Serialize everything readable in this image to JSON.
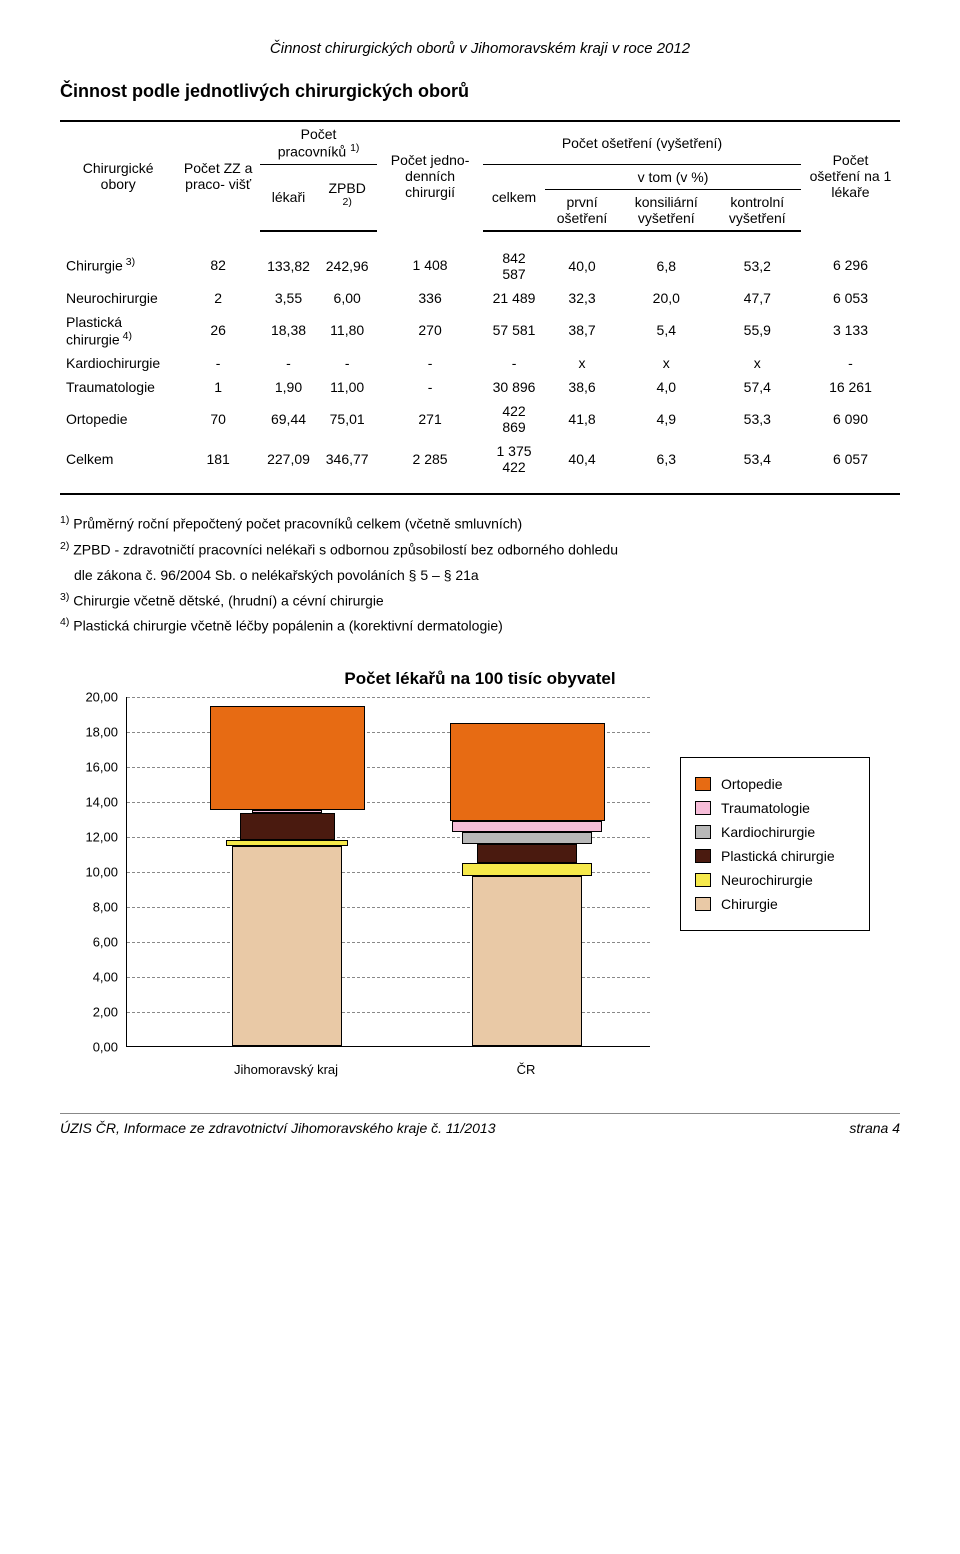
{
  "doc_header": "Činnost chirurgických oborů v Jihomoravském kraji v roce 2012",
  "section_title": "Činnost podle jednotlivých chirurgických oborů",
  "table": {
    "head": {
      "col1": "Chirurgické obory",
      "col2": "Počet ZZ a praco- višť",
      "grp1": "Počet pracovníků",
      "grp1_sup": "1)",
      "grp1_a": "lékaři",
      "grp1_b": "ZPBD",
      "grp1_b_sup": "2)",
      "col5": "Počet jedno- denních chirurgií",
      "grp2": "Počet ošetření (vyšetření)",
      "grp2_a": "celkem",
      "grp2_b": "v tom (v %)",
      "grp2_b1": "první ošetření",
      "grp2_b2": "konsiliární vyšetření",
      "grp2_b3": "kontrolní vyšetření",
      "col10": "Počet ošetření na 1 lékaře"
    },
    "rows": [
      {
        "name": "Chirurgie",
        "sup": "3)",
        "c1": "82",
        "c2": "133,82",
        "c3": "242,96",
        "c4": "1 408",
        "c5": "842 587",
        "c6": "40,0",
        "c7": "6,8",
        "c8": "53,2",
        "c9": "6 296"
      },
      {
        "name": "Neurochirurgie",
        "sup": "",
        "c1": "2",
        "c2": "3,55",
        "c3": "6,00",
        "c4": "336",
        "c5": "21 489",
        "c6": "32,3",
        "c7": "20,0",
        "c8": "47,7",
        "c9": "6 053"
      },
      {
        "name": "Plastická chirurgie",
        "sup": "4)",
        "c1": "26",
        "c2": "18,38",
        "c3": "11,80",
        "c4": "270",
        "c5": "57 581",
        "c6": "38,7",
        "c7": "5,4",
        "c8": "55,9",
        "c9": "3 133"
      },
      {
        "name": "Kardiochirurgie",
        "sup": "",
        "c1": "-",
        "c2": "-",
        "c3": "-",
        "c4": "-",
        "c5": "-",
        "c6": "x",
        "c7": "x",
        "c8": "x",
        "c9": "-"
      },
      {
        "name": "Traumatologie",
        "sup": "",
        "c1": "1",
        "c2": "1,90",
        "c3": "11,00",
        "c4": "-",
        "c5": "30 896",
        "c6": "38,6",
        "c7": "4,0",
        "c8": "57,4",
        "c9": "16 261"
      },
      {
        "name": "Ortopedie",
        "sup": "",
        "c1": "70",
        "c2": "69,44",
        "c3": "75,01",
        "c4": "271",
        "c5": "422 869",
        "c6": "41,8",
        "c7": "4,9",
        "c8": "53,3",
        "c9": "6 090"
      },
      {
        "name": "Celkem",
        "sup": "",
        "c1": "181",
        "c2": "227,09",
        "c3": "346,77",
        "c4": "2 285",
        "c5": "1 375 422",
        "c6": "40,4",
        "c7": "6,3",
        "c8": "53,4",
        "c9": "6 057"
      }
    ]
  },
  "footnotes": {
    "f1_sup": "1)",
    "f1": "Průměrný roční přepočtený počet pracovníků celkem (včetně smluvních)",
    "f2_sup": "2)",
    "f2a": "ZPBD - zdravotničtí pracovníci nelékaři s odbornou způsobilostí bez odborného dohledu",
    "f2b": "dle zákona č. 96/2004 Sb. o nelékařských povoláních § 5 – § 21a",
    "f3_sup": "3)",
    "f3": "Chirurgie včetně dětské, (hrudní) a cévní  chirurgie",
    "f4_sup": "4)",
    "f4": "Plastická chirurgie včetně léčby popálenin a (korektivní dermatologie)"
  },
  "chart": {
    "title": "Počet lékařů na 100 tisíc obyvatel",
    "type": "stacked-bar",
    "ylim": [
      0,
      20
    ],
    "ytick_step": 2,
    "ylabels": [
      "0,00",
      "2,00",
      "4,00",
      "6,00",
      "8,00",
      "10,00",
      "12,00",
      "14,00",
      "16,00",
      "18,00",
      "20,00"
    ],
    "grid_color": "#888888",
    "background": "#ffffff",
    "categories": [
      "Jihomoravský kraj",
      "ČR"
    ],
    "series_order": [
      "Chirurgie",
      "Neurochirurgie",
      "Plastická chirurgie",
      "Kardiochirurgie",
      "Traumatologie",
      "Ortopedie"
    ],
    "series_colors": {
      "Chirurgie": "#e9c9a6",
      "Neurochirurgie": "#f6e94b",
      "Plastická chirurgie": "#4a1a0f",
      "Kardiochirurgie": "#b8b8b8",
      "Traumatologie": "#f6bcd8",
      "Ortopedie": "#e76b13"
    },
    "data": {
      "Jihomoravský kraj": {
        "Chirurgie": 11.45,
        "Neurochirurgie": 0.3,
        "Plastická chirurgie": 1.57,
        "Kardiochirurgie": 0.0,
        "Traumatologie": 0.16,
        "Ortopedie": 5.94
      },
      "ČR": {
        "Chirurgie": 9.7,
        "Neurochirurgie": 0.75,
        "Plastická chirurgie": 1.1,
        "Kardiochirurgie": 0.7,
        "Traumatologie": 0.6,
        "Ortopedie": 5.6
      }
    },
    "bar_widths": {
      "Jihomoravský kraj": {
        "Chirurgie": 110,
        "Neurochirurgie": 122,
        "Plastická chirurgie": 95,
        "Kardiochirurgie": 80,
        "Traumatologie": 70,
        "Ortopedie": 155
      },
      "ČR": {
        "Chirurgie": 110,
        "Neurochirurgie": 130,
        "Plastická chirurgie": 100,
        "Kardiochirurgie": 130,
        "Traumatologie": 150,
        "Ortopedie": 155
      }
    },
    "group_centers": [
      160,
      400
    ],
    "legend_items": [
      {
        "label": "Ortopedie",
        "color": "#e76b13"
      },
      {
        "label": "Traumatologie",
        "color": "#f6bcd8"
      },
      {
        "label": "Kardiochirurgie",
        "color": "#b8b8b8"
      },
      {
        "label": "Plastická chirurgie",
        "color": "#4a1a0f"
      },
      {
        "label": "Neurochirurgie",
        "color": "#f6e94b"
      },
      {
        "label": "Chirurgie",
        "color": "#e9c9a6"
      }
    ]
  },
  "footer": {
    "left": "ÚZIS ČR, Informace ze zdravotnictví Jihomoravského kraje č. 11/2013",
    "right": "strana 4"
  }
}
